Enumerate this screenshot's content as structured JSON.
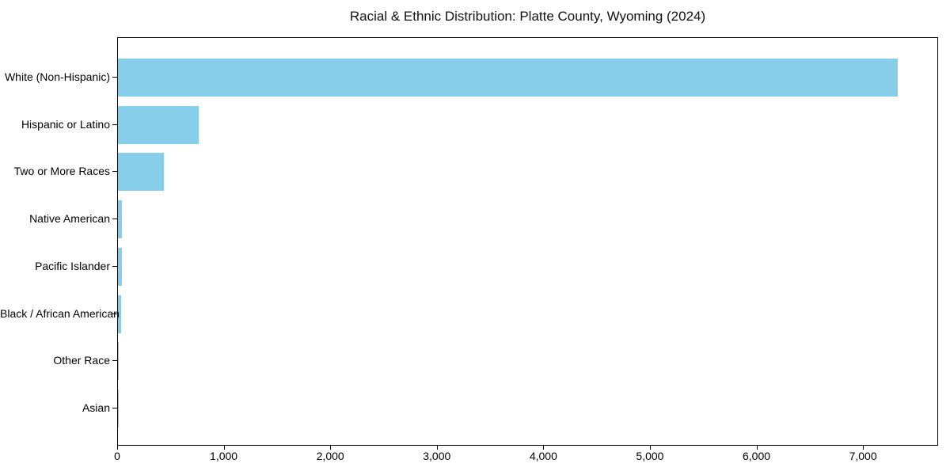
{
  "title": "Racial & Ethnic Distribution: Platte County, Wyoming (2024)",
  "chart_data": {
    "type": "bar",
    "orientation": "horizontal",
    "title": "Racial & Ethnic Distribution: Platte County, Wyoming (2024)",
    "categories": [
      "White (Non-Hispanic)",
      "Hispanic or Latino",
      "Two or More Races",
      "Native American",
      "Pacific Islander",
      "Black / African American",
      "Other Race",
      "Asian"
    ],
    "values": [
      7320,
      760,
      430,
      40,
      38,
      32,
      8,
      2
    ],
    "xlabel": "",
    "ylabel": "",
    "xlim": [
      0,
      7690
    ],
    "x_ticks": [
      0,
      1000,
      2000,
      3000,
      4000,
      5000,
      6000,
      7000
    ],
    "x_tick_labels": [
      "0",
      "1,000",
      "2,000",
      "3,000",
      "4,000",
      "5,000",
      "6,000",
      "7,000"
    ],
    "bar_color": "#87ceeb",
    "axis_color": "#000000",
    "grid": false,
    "legend": false
  }
}
